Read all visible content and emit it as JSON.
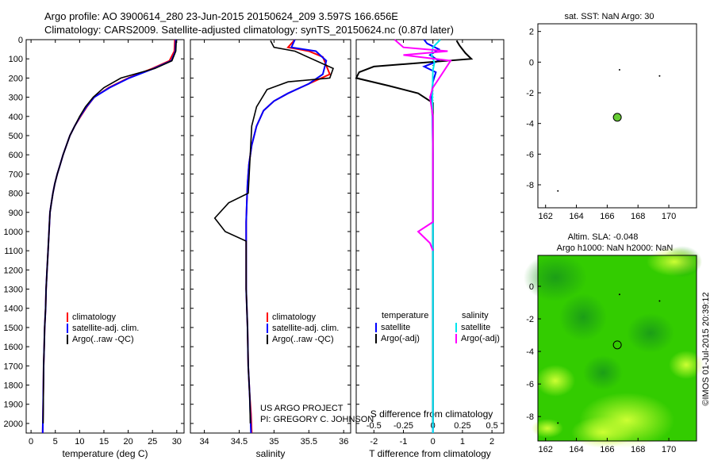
{
  "header": {
    "line1": "Argo profile: AO 3900614_280 23-Jun-2015 20150624_209 3.597S 166.656E",
    "line2": "Climatology: CARS2009. Satellite-adjusted climatology: synTS_20150624.nc (0.87d later)"
  },
  "credit": "©IMOS 01-Jul-2015 20:39:12",
  "project": {
    "line1": "US ARGO PROJECT",
    "line2": "PI: GREGORY C. JOHNSON"
  },
  "colors": {
    "climatology": "#ff0000",
    "satellite": "#0000ff",
    "argo": "#000000",
    "sal_satellite": "#00e5ee",
    "sal_argo": "#ff00ff",
    "sst_marker": "#66cc33",
    "sla_field": "#33cc00"
  },
  "depth_axis": {
    "range": [
      0,
      2050
    ],
    "ticks": [
      0,
      100,
      200,
      300,
      400,
      500,
      600,
      700,
      800,
      900,
      1000,
      1100,
      1200,
      1300,
      1400,
      1500,
      1600,
      1700,
      1800,
      1900,
      2000
    ]
  },
  "chart_data": [
    {
      "type": "line",
      "panel": "temperature",
      "xlabel": "temperature (deg C)",
      "xlim": [
        -1,
        31.5
      ],
      "xticks": [
        0,
        5,
        10,
        15,
        20,
        25,
        30
      ],
      "legend": [
        "climatology",
        "satellite-adj. clim.",
        "Argo(..raw -QC)"
      ],
      "series": [
        {
          "name": "climatology",
          "x": [
            29.6,
            29.5,
            28.5,
            25.0,
            20.0,
            16.0,
            13.0,
            11.5,
            10.2,
            9.0,
            8.0,
            7.3,
            6.6,
            6.0,
            5.4,
            4.9,
            4.5,
            4.2,
            3.9,
            3.7,
            3.5,
            3.3,
            3.1,
            3.0,
            2.8,
            2.7,
            2.6,
            2.5,
            2.4
          ],
          "y": [
            0,
            60,
            110,
            150,
            200,
            250,
            300,
            350,
            400,
            450,
            500,
            550,
            600,
            650,
            700,
            750,
            800,
            850,
            900,
            1000,
            1100,
            1200,
            1300,
            1400,
            1500,
            1600,
            1700,
            1900,
            2050
          ]
        },
        {
          "name": "satellite-adj. clim.",
          "x": [
            29.8,
            29.7,
            28.9,
            25.3,
            20.2,
            16.2,
            13.0,
            11.4,
            10.1,
            9.0,
            8.0,
            7.3,
            6.6,
            6.0,
            5.4,
            4.9,
            4.5,
            4.2,
            3.9,
            3.7,
            3.5,
            3.3,
            3.1,
            3.0,
            2.8,
            2.7,
            2.6,
            2.5,
            2.4
          ],
          "y": [
            0,
            60,
            110,
            150,
            200,
            250,
            300,
            350,
            400,
            450,
            500,
            550,
            600,
            650,
            700,
            750,
            800,
            850,
            900,
            1000,
            1100,
            1200,
            1300,
            1400,
            1500,
            1600,
            1700,
            1900,
            2050
          ]
        },
        {
          "name": "Argo(..raw -QC)",
          "x": [
            29.9,
            29.8,
            29.0,
            25.5,
            18.5,
            15.0,
            12.8,
            11.2,
            10.0,
            9.0,
            8.0,
            7.3,
            6.6,
            6.0,
            5.4,
            4.9,
            4.5,
            4.2,
            3.9,
            3.7,
            3.5,
            3.3,
            3.1,
            3.0,
            2.8,
            2.7,
            2.6,
            2.5
          ],
          "y": [
            5,
            60,
            110,
            150,
            200,
            250,
            300,
            350,
            400,
            450,
            500,
            550,
            600,
            650,
            700,
            750,
            800,
            850,
            900,
            1000,
            1100,
            1200,
            1300,
            1400,
            1500,
            1600,
            1700,
            2000
          ]
        }
      ]
    },
    {
      "type": "line",
      "panel": "salinity",
      "xlabel": "salinity",
      "xlim": [
        33.8,
        36.1
      ],
      "xticks": [
        34,
        34.5,
        35,
        35.5,
        36
      ],
      "legend": [
        "climatology",
        "satellite-adj. clim.",
        "Argo(..raw -QC)"
      ],
      "series": [
        {
          "name": "climatology",
          "x": [
            35.3,
            35.2,
            35.5,
            35.7,
            35.8,
            35.5,
            35.2,
            35.0,
            34.85,
            34.75,
            34.68,
            34.64,
            34.62,
            34.61,
            34.6,
            34.6,
            34.6,
            34.62,
            34.63,
            34.65,
            34.67,
            34.68
          ],
          "y": [
            0,
            40,
            60,
            90,
            180,
            230,
            280,
            320,
            370,
            450,
            550,
            650,
            750,
            850,
            950,
            1100,
            1300,
            1500,
            1700,
            1850,
            1950,
            2050
          ]
        },
        {
          "name": "satellite-adj. clim.",
          "x": [
            35.3,
            35.25,
            35.6,
            35.75,
            35.7,
            35.5,
            35.2,
            35.0,
            34.85,
            34.75,
            34.68,
            34.64,
            34.62,
            34.61,
            34.6,
            34.6,
            34.6,
            34.62,
            34.63,
            34.65,
            34.66,
            34.67
          ],
          "y": [
            0,
            40,
            60,
            110,
            180,
            230,
            280,
            320,
            370,
            450,
            550,
            650,
            750,
            850,
            950,
            1100,
            1300,
            1500,
            1700,
            1850,
            1950,
            2050
          ]
        },
        {
          "name": "Argo(..raw -QC)",
          "x": [
            34.95,
            35.0,
            35.3,
            35.85,
            35.8,
            35.2,
            34.9,
            34.75,
            34.68,
            34.63,
            34.35,
            34.15,
            34.3,
            34.6,
            34.6,
            34.6,
            34.62,
            34.63,
            34.65,
            34.66
          ],
          "y": [
            5,
            40,
            60,
            150,
            200,
            220,
            260,
            350,
            450,
            800,
            850,
            930,
            1000,
            1050,
            1100,
            1300,
            1500,
            1700,
            1850,
            2000
          ]
        }
      ]
    },
    {
      "type": "line",
      "panel": "difference",
      "xlabel": "T difference from climatology",
      "x2label": "S difference from climatology",
      "xlim": [
        -2.6,
        2.4
      ],
      "xticks": [
        -2,
        -1,
        0,
        1,
        2
      ],
      "x2ticks": [
        "-0.5",
        "-0.25",
        "0",
        "0.25",
        "0.5"
      ],
      "legend": {
        "temperature_title": "temperature",
        "salinity_title": "salinity",
        "satellite": "satellite",
        "argo_adj": "Argo(-adj)"
      },
      "series": [
        {
          "name": "T satellite",
          "x": [
            -0.3,
            -0.2,
            0.2,
            -0.1,
            0.2,
            -0.3,
            0.1,
            0.0,
            -0.05,
            -0.02,
            0.0,
            0.0,
            0.0,
            0.0,
            0.0,
            0.0,
            0.0
          ],
          "y": [
            0,
            20,
            50,
            80,
            110,
            140,
            170,
            220,
            300,
            400,
            600,
            800,
            1000,
            1300,
            1600,
            1900,
            2050
          ]
        },
        {
          "name": "T Argo(-adj)",
          "x": [
            0.8,
            0.9,
            1.1,
            1.3,
            -2.0,
            -2.5,
            -2.6,
            -1.5,
            -0.5,
            0.0,
            0.0,
            0.0,
            0.0
          ],
          "y": [
            5,
            30,
            70,
            100,
            140,
            170,
            200,
            240,
            280,
            330,
            600,
            1200,
            2000
          ]
        },
        {
          "name": "S satellite",
          "x": [
            0.25,
            0.0,
            -0.05,
            0.05,
            0.0,
            -0.02,
            0.0,
            0.0,
            0.0,
            0.0
          ],
          "y": [
            0,
            40,
            80,
            120,
            160,
            300,
            600,
            1000,
            1500,
            2050
          ]
        },
        {
          "name": "S Argo(-adj)",
          "x": [
            -1.3,
            -1.0,
            0.5,
            -1.0,
            0.6,
            0.3,
            0.0,
            -0.1,
            0.0,
            0.0,
            -0.5,
            -0.1,
            0.0
          ],
          "y": [
            0,
            40,
            60,
            80,
            110,
            180,
            250,
            300,
            400,
            950,
            1000,
            1060,
            1100
          ]
        }
      ]
    },
    {
      "type": "scatter",
      "panel": "sst_map",
      "title": "sat. SST: NaN Argo: 30",
      "xlim": [
        161.5,
        171.8
      ],
      "ylim": [
        -9.5,
        2.5
      ],
      "xticks": [
        162,
        164,
        166,
        168,
        170
      ],
      "yticks": [
        2,
        0,
        -2,
        -4,
        -6,
        -8
      ],
      "profile_location": {
        "lon": 166.656,
        "lat": -3.597
      },
      "points": [
        {
          "lon": 166.8,
          "lat": -0.5
        },
        {
          "lon": 169.4,
          "lat": -0.9
        },
        {
          "lon": 162.8,
          "lat": -8.4
        }
      ]
    },
    {
      "type": "heatmap",
      "panel": "sla_map",
      "title": "Altim. SLA: -0.048",
      "subtitle": "Argo h1000: NaN h2000: NaN",
      "xlim": [
        161.5,
        171.8
      ],
      "ylim": [
        -9.5,
        1.9
      ],
      "xticks": [
        162,
        164,
        166,
        168,
        170
      ],
      "yticks": [
        0,
        -2,
        -4,
        -6,
        -8
      ],
      "profile_location": {
        "lon": 166.656,
        "lat": -3.597
      },
      "points": [
        {
          "lon": 166.8,
          "lat": -0.5
        },
        {
          "lon": 169.4,
          "lat": -0.9
        },
        {
          "lon": 162.8,
          "lat": -8.4
        }
      ]
    }
  ]
}
